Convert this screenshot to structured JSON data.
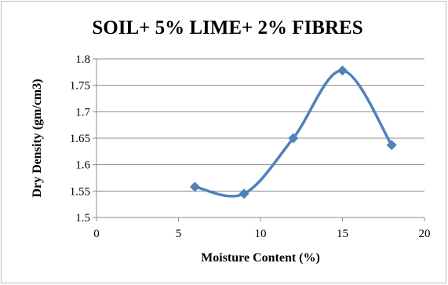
{
  "chart_data": {
    "type": "line",
    "title": "SOIL+ 5% LIME+ 2% FIBRES",
    "xlabel": "Moisture Content  (%)",
    "ylabel": "Dry Density (gm/cm3)",
    "xlim": [
      0,
      20
    ],
    "ylim": [
      1.5,
      1.8
    ],
    "x_ticks": [
      0,
      5,
      10,
      15,
      20
    ],
    "x_tick_labels": [
      "0",
      "5",
      "10",
      "15",
      "20"
    ],
    "y_ticks": [
      1.5,
      1.55,
      1.6,
      1.65,
      1.7,
      1.75,
      1.8
    ],
    "y_tick_labels": [
      "1.5",
      "1.55",
      "1.6",
      "1.65",
      "1.7",
      "1.75",
      "1.8"
    ],
    "grid": "horizontal",
    "legend": "none",
    "smooth": true,
    "marker": "diamond",
    "series_color": "#4f81bd",
    "series": [
      {
        "x": [
          6,
          9,
          12,
          15,
          18
        ],
        "y": [
          1.558,
          1.545,
          1.65,
          1.778,
          1.637
        ]
      }
    ]
  }
}
